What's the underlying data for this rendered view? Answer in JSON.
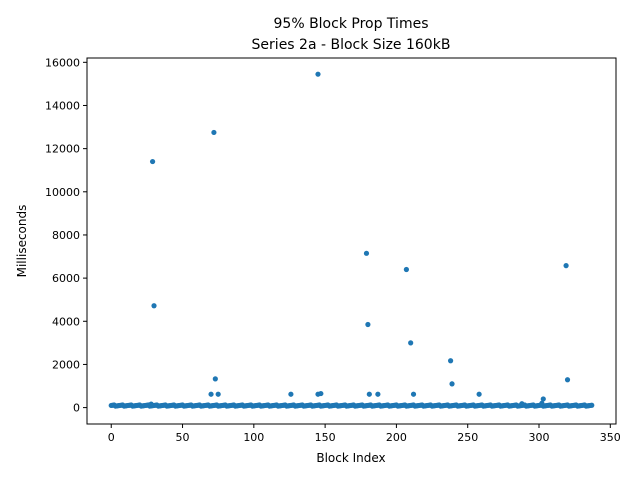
{
  "chart_data": {
    "type": "scatter",
    "title": "95% Block Prop Times",
    "subtitle": "Series 2a - Block Size 160kB",
    "xlabel": "Block Index",
    "ylabel": "Milliseconds",
    "xlim": [
      -17,
      354
    ],
    "ylim": [
      -760,
      16200
    ],
    "xticks": [
      0,
      50,
      100,
      150,
      200,
      250,
      300,
      350
    ],
    "yticks": [
      0,
      2000,
      4000,
      6000,
      8000,
      10000,
      12000,
      14000,
      16000
    ],
    "grid": false,
    "marker_color": "#1f77b4",
    "baseline": {
      "x_start": 0,
      "x_end": 337,
      "y_typical": 90,
      "note_values": [
        70,
        80,
        90,
        100,
        110,
        120
      ]
    },
    "outliers": [
      {
        "x": 29,
        "y": 11400
      },
      {
        "x": 30,
        "y": 4720
      },
      {
        "x": 28,
        "y": 160
      },
      {
        "x": 70,
        "y": 620
      },
      {
        "x": 72,
        "y": 12750
      },
      {
        "x": 73,
        "y": 1330
      },
      {
        "x": 75,
        "y": 620
      },
      {
        "x": 126,
        "y": 620
      },
      {
        "x": 145,
        "y": 15450
      },
      {
        "x": 145,
        "y": 620
      },
      {
        "x": 147,
        "y": 650
      },
      {
        "x": 179,
        "y": 7150
      },
      {
        "x": 180,
        "y": 3850
      },
      {
        "x": 181,
        "y": 620
      },
      {
        "x": 187,
        "y": 620
      },
      {
        "x": 207,
        "y": 6400
      },
      {
        "x": 210,
        "y": 3000
      },
      {
        "x": 212,
        "y": 620
      },
      {
        "x": 238,
        "y": 2170
      },
      {
        "x": 239,
        "y": 1100
      },
      {
        "x": 258,
        "y": 620
      },
      {
        "x": 288,
        "y": 180
      },
      {
        "x": 302,
        "y": 200
      },
      {
        "x": 303,
        "y": 400
      },
      {
        "x": 319,
        "y": 6580
      },
      {
        "x": 320,
        "y": 1290
      }
    ]
  }
}
